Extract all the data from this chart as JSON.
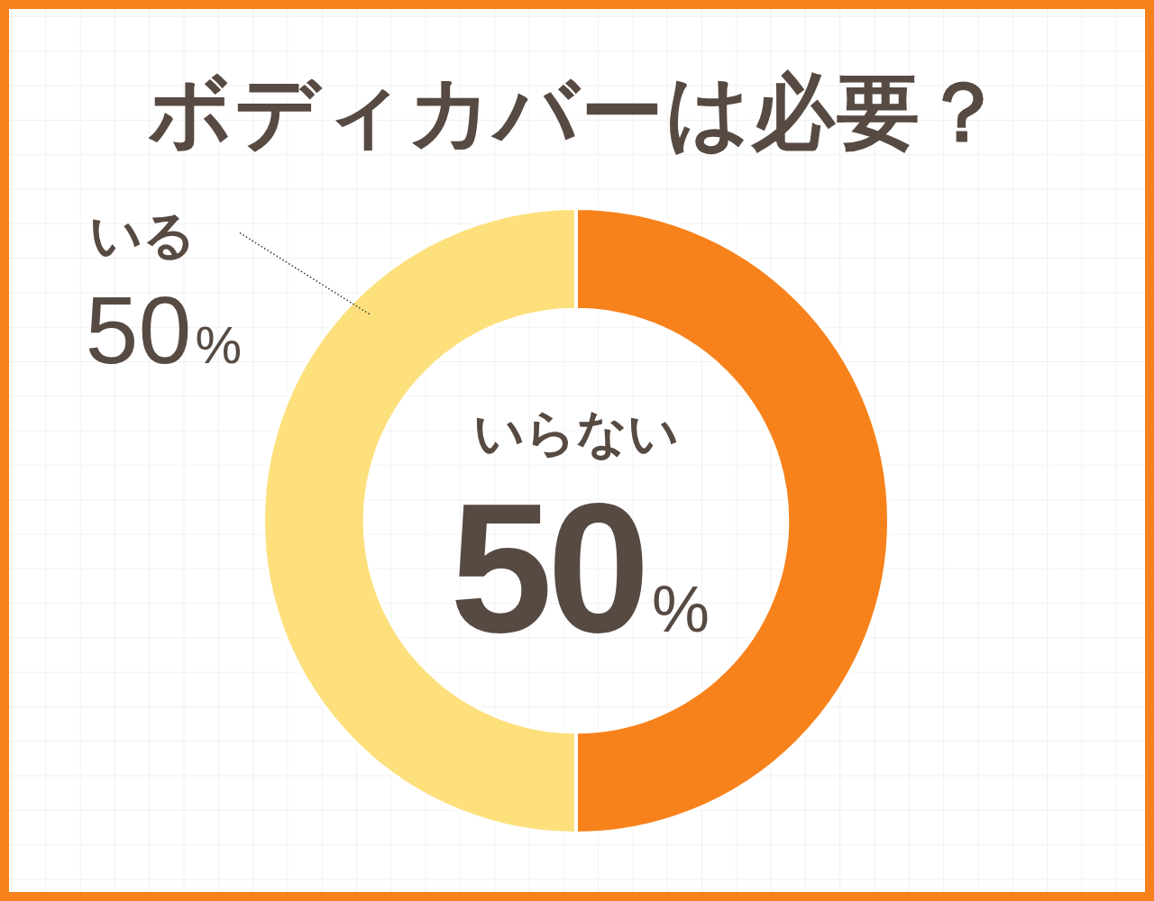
{
  "chart_data": {
    "type": "donut",
    "title": "ボディカバーは必要？",
    "categories": [
      "いらない",
      "いる"
    ],
    "values": [
      50,
      50
    ],
    "colors": [
      "#f7821b",
      "#fde07c"
    ],
    "value_labels": [
      "50%",
      "50%"
    ]
  }
}
